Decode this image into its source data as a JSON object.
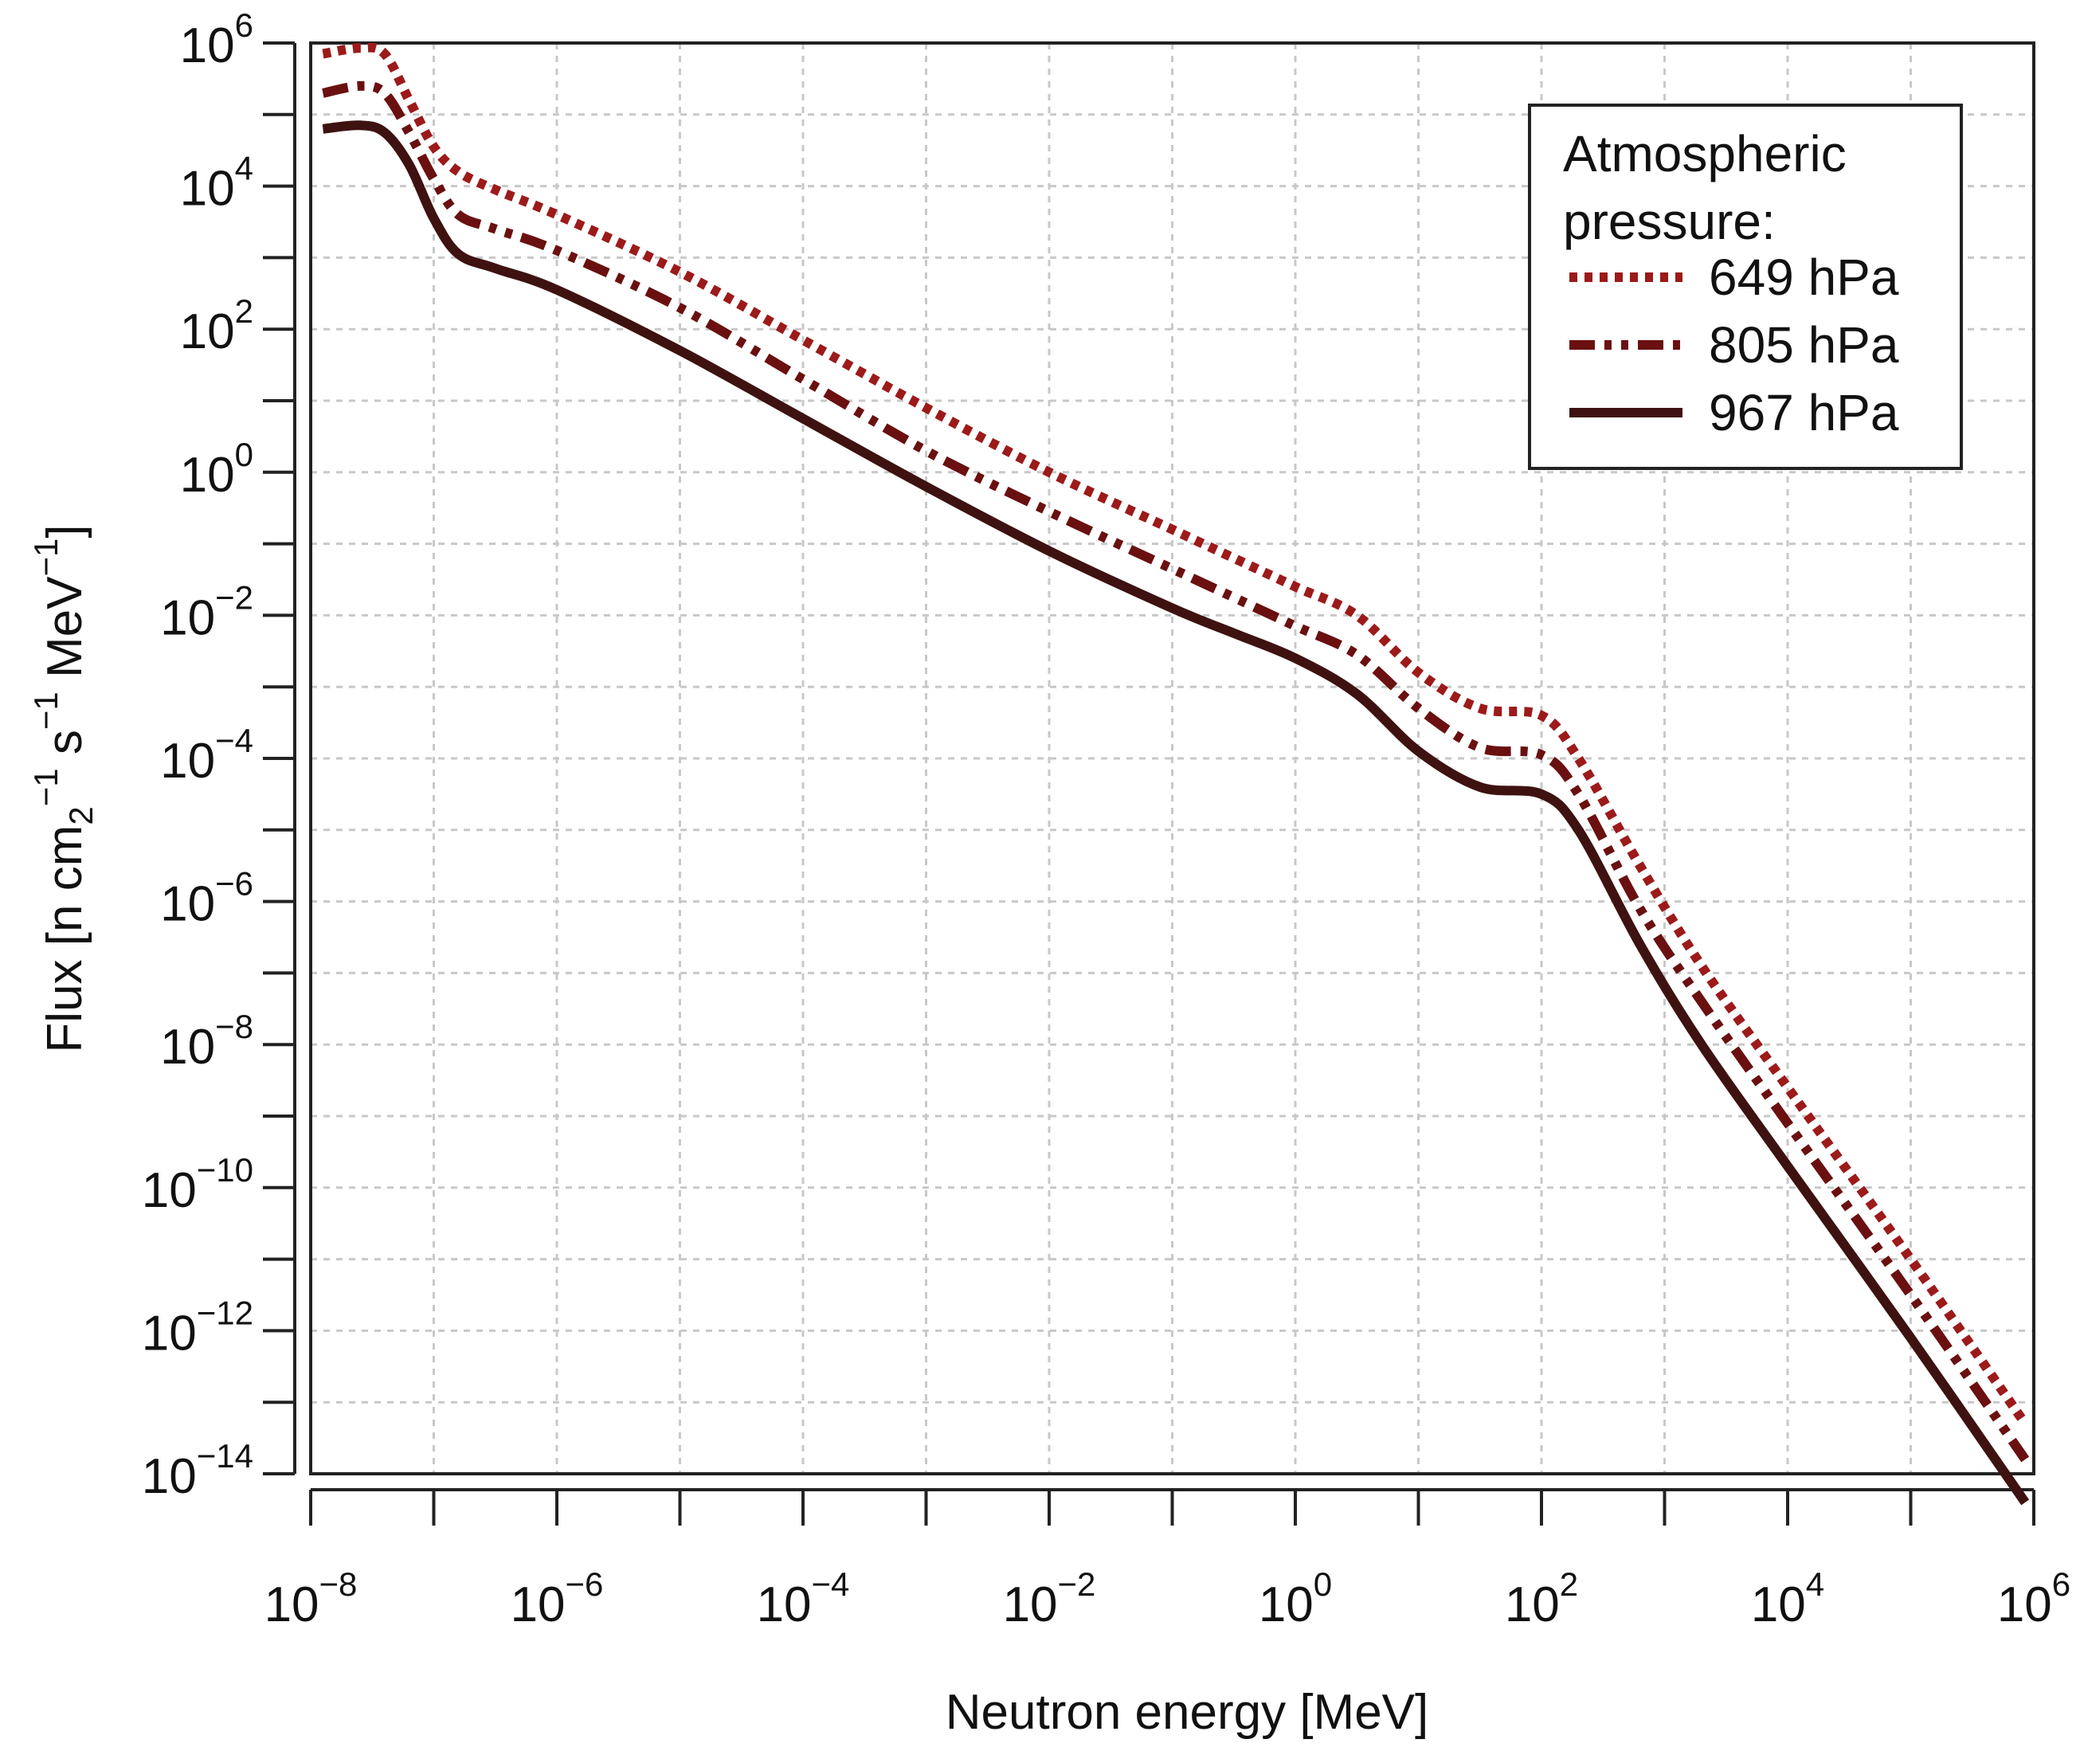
{
  "chart_data": {
    "type": "line",
    "title": "",
    "xlabel": "Neutron energy [MeV]",
    "ylabel": {
      "text": "Flux [n cm",
      "sub": "2",
      "sup1": "−1",
      "mid1": " s",
      "sup2": "−1",
      "mid2": " MeV",
      "sup3": "−1",
      "end": "]"
    },
    "xscale": "log",
    "yscale": "log",
    "xlim_exp": [
      -8,
      6
    ],
    "ylim_exp": [
      -14,
      6
    ],
    "x_major_ticks": [
      -8,
      -7,
      -6,
      -5,
      -4,
      -3,
      -2,
      -1,
      0,
      1,
      2,
      3,
      4,
      5,
      6
    ],
    "x_tick_labels": [
      {
        "exp": -8,
        "base": "10",
        "sup": "−8"
      },
      {
        "exp": -6,
        "base": "10",
        "sup": "−6"
      },
      {
        "exp": -4,
        "base": "10",
        "sup": "−4"
      },
      {
        "exp": -2,
        "base": "10",
        "sup": "−2"
      },
      {
        "exp": 0,
        "base": "10",
        "sup": "0"
      },
      {
        "exp": 2,
        "base": "10",
        "sup": "2"
      },
      {
        "exp": 4,
        "base": "10",
        "sup": "4"
      },
      {
        "exp": 6,
        "base": "10",
        "sup": "6"
      }
    ],
    "y_major_ticks": [
      -14,
      -13,
      -12,
      -11,
      -10,
      -9,
      -8,
      -7,
      -6,
      -5,
      -4,
      -3,
      -2,
      -1,
      0,
      1,
      2,
      3,
      4,
      5,
      6
    ],
    "y_tick_labels": [
      {
        "exp": 6,
        "base": "10",
        "sup": "6"
      },
      {
        "exp": 4,
        "base": "10",
        "sup": "4"
      },
      {
        "exp": 2,
        "base": "10",
        "sup": "2"
      },
      {
        "exp": 0,
        "base": "10",
        "sup": "0"
      },
      {
        "exp": -2,
        "base": "10",
        "sup": "−2"
      },
      {
        "exp": -4,
        "base": "10",
        "sup": "−4"
      },
      {
        "exp": -6,
        "base": "10",
        "sup": "−6"
      },
      {
        "exp": -8,
        "base": "10",
        "sup": "−8"
      },
      {
        "exp": -10,
        "base": "10",
        "sup": "−10"
      },
      {
        "exp": -12,
        "base": "10",
        "sup": "−12"
      },
      {
        "exp": -14,
        "base": "10",
        "sup": "−14"
      }
    ],
    "grid": true,
    "legend": {
      "title_lines": [
        "Atmospheric",
        "pressure:"
      ],
      "placement": "top-right"
    },
    "series": [
      {
        "name": "649 hPa",
        "color": "#9c1a1a",
        "style": "dotted",
        "points_log10": [
          [
            -7.9,
            5.85
          ],
          [
            -7.6,
            5.93
          ],
          [
            -7.4,
            5.85
          ],
          [
            -7.2,
            5.2
          ],
          [
            -7.0,
            4.55
          ],
          [
            -6.8,
            4.2
          ],
          [
            -6.5,
            3.95
          ],
          [
            -6.0,
            3.6
          ],
          [
            -5.0,
            2.8
          ],
          [
            -4.0,
            1.85
          ],
          [
            -3.0,
            0.9
          ],
          [
            -2.0,
            0.0
          ],
          [
            -1.0,
            -0.8
          ],
          [
            -0.5,
            -1.2
          ],
          [
            0.0,
            -1.6
          ],
          [
            0.5,
            -2.0
          ],
          [
            1.0,
            -2.8
          ],
          [
            1.5,
            -3.3
          ],
          [
            2.0,
            -3.4
          ],
          [
            2.3,
            -4.0
          ],
          [
            2.8,
            -5.5
          ],
          [
            3.3,
            -6.9
          ],
          [
            4.0,
            -8.6
          ],
          [
            5.0,
            -11.0
          ],
          [
            5.93,
            -13.3
          ]
        ]
      },
      {
        "name": "805 hPa",
        "color": "#6a1010",
        "style": "dashdotdot",
        "points_log10": [
          [
            -7.9,
            5.3
          ],
          [
            -7.6,
            5.4
          ],
          [
            -7.4,
            5.3
          ],
          [
            -7.2,
            4.75
          ],
          [
            -7.0,
            4.1
          ],
          [
            -6.8,
            3.6
          ],
          [
            -6.5,
            3.4
          ],
          [
            -6.0,
            3.1
          ],
          [
            -5.0,
            2.3
          ],
          [
            -4.0,
            1.3
          ],
          [
            -3.0,
            0.3
          ],
          [
            -2.0,
            -0.55
          ],
          [
            -1.0,
            -1.35
          ],
          [
            -0.5,
            -1.75
          ],
          [
            0.0,
            -2.15
          ],
          [
            0.5,
            -2.55
          ],
          [
            1.0,
            -3.3
          ],
          [
            1.5,
            -3.85
          ],
          [
            2.0,
            -3.95
          ],
          [
            2.3,
            -4.5
          ],
          [
            2.8,
            -6.1
          ],
          [
            3.3,
            -7.4
          ],
          [
            4.0,
            -9.1
          ],
          [
            5.0,
            -11.5
          ],
          [
            5.93,
            -13.8
          ]
        ]
      },
      {
        "name": "967 hPa",
        "color": "#3e1210",
        "style": "solid",
        "points_log10": [
          [
            -7.9,
            4.8
          ],
          [
            -7.6,
            4.85
          ],
          [
            -7.4,
            4.75
          ],
          [
            -7.2,
            4.3
          ],
          [
            -7.0,
            3.55
          ],
          [
            -6.8,
            3.05
          ],
          [
            -6.5,
            2.85
          ],
          [
            -6.0,
            2.55
          ],
          [
            -5.0,
            1.7
          ],
          [
            -4.0,
            0.75
          ],
          [
            -3.0,
            -0.2
          ],
          [
            -2.0,
            -1.1
          ],
          [
            -1.0,
            -1.9
          ],
          [
            -0.5,
            -2.25
          ],
          [
            0.0,
            -2.6
          ],
          [
            0.5,
            -3.1
          ],
          [
            1.0,
            -3.9
          ],
          [
            1.5,
            -4.4
          ],
          [
            2.0,
            -4.5
          ],
          [
            2.3,
            -5.0
          ],
          [
            2.8,
            -6.6
          ],
          [
            3.3,
            -8.0
          ],
          [
            4.0,
            -9.7
          ],
          [
            5.0,
            -12.1
          ],
          [
            5.93,
            -14.4
          ]
        ]
      }
    ]
  }
}
